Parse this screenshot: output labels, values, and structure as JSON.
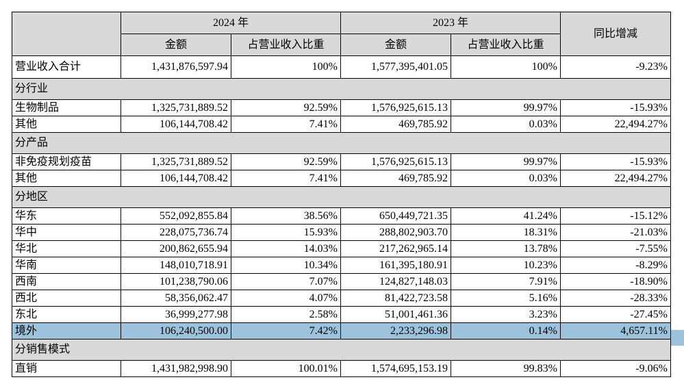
{
  "header": {
    "year_current": "2024 年",
    "year_prior": "2023 年",
    "yoy": "同比增减",
    "amount": "金额",
    "share": "占营业收入比重"
  },
  "total": {
    "label": "营业收入合计",
    "amount_2024": "1,431,876,597.94",
    "share_2024": "100%",
    "amount_2023": "1,577,395,401.05",
    "share_2023": "100%",
    "yoy": "-9.23%"
  },
  "sections": [
    {
      "title": "分行业",
      "rows": [
        {
          "label": "生物制品",
          "amount_2024": "1,325,731,889.52",
          "share_2024": "92.59%",
          "amount_2023": "1,576,925,615.13",
          "share_2023": "99.97%",
          "yoy": "-15.93%"
        },
        {
          "label": "其他",
          "amount_2024": "106,144,708.42",
          "share_2024": "7.41%",
          "amount_2023": "469,785.92",
          "share_2023": "0.03%",
          "yoy": "22,494.27%"
        }
      ]
    },
    {
      "title": "分产品",
      "rows": [
        {
          "label": "非免疫规划疫苗",
          "amount_2024": "1,325,731,889.52",
          "share_2024": "92.59%",
          "amount_2023": "1,576,925,615.13",
          "share_2023": "99.97%",
          "yoy": "-15.93%"
        },
        {
          "label": "其他",
          "amount_2024": "106,144,708.42",
          "share_2024": "7.41%",
          "amount_2023": "469,785.92",
          "share_2023": "0.03%",
          "yoy": "22,494.27%"
        }
      ]
    },
    {
      "title": "分地区",
      "rows": [
        {
          "label": "华东",
          "amount_2024": "552,092,855.84",
          "share_2024": "38.56%",
          "amount_2023": "650,449,721.35",
          "share_2023": "41.24%",
          "yoy": "-15.12%"
        },
        {
          "label": "华中",
          "amount_2024": "228,075,736.74",
          "share_2024": "15.93%",
          "amount_2023": "288,802,903.70",
          "share_2023": "18.31%",
          "yoy": "-21.03%"
        },
        {
          "label": "华北",
          "amount_2024": "200,862,655.94",
          "share_2024": "14.03%",
          "amount_2023": "217,262,965.14",
          "share_2023": "13.78%",
          "yoy": "-7.55%"
        },
        {
          "label": "华南",
          "amount_2024": "148,010,718.91",
          "share_2024": "10.34%",
          "amount_2023": "161,395,180.91",
          "share_2023": "10.23%",
          "yoy": "-8.29%"
        },
        {
          "label": "西南",
          "amount_2024": "101,238,790.06",
          "share_2024": "7.07%",
          "amount_2023": "124,827,148.03",
          "share_2023": "7.91%",
          "yoy": "-18.90%"
        },
        {
          "label": "西北",
          "amount_2024": "58,356,062.47",
          "share_2024": "4.07%",
          "amount_2023": "81,422,723.58",
          "share_2023": "5.16%",
          "yoy": "-28.33%"
        },
        {
          "label": "东北",
          "amount_2024": "36,999,277.98",
          "share_2024": "2.58%",
          "amount_2023": "51,001,461.36",
          "share_2023": "3.23%",
          "yoy": "-27.45%"
        },
        {
          "label": "境外",
          "amount_2024": "106,240,500.00",
          "share_2024": "7.42%",
          "amount_2023": "2,233,296.98",
          "share_2023": "0.14%",
          "yoy": "4,657.11%",
          "highlight": true
        }
      ]
    },
    {
      "title": "分销售模式",
      "rows": [
        {
          "label": "直销",
          "amount_2024": "1,431,982,998.90",
          "share_2024": "100.01%",
          "amount_2023": "1,574,695,153.19",
          "share_2023": "99.83%",
          "yoy": "-9.06%"
        }
      ]
    }
  ],
  "colors": {
    "header_bg": "#d9d9d9",
    "highlight": "#9cc2dc"
  }
}
